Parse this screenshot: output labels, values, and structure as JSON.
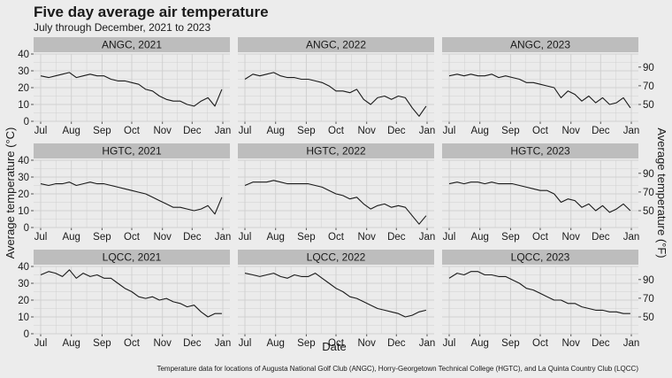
{
  "chart_data": {
    "type": "line",
    "title": "Five day average air temperature",
    "subtitle": "July through December, 2021 to 2023",
    "xlabel": "Date",
    "ylabel_left": "Average temperature (°C)",
    "ylabel_right": "Average temperature (°F)",
    "caption": "Temperature data for locations of Augusta National Golf Club (ANGC), Horry-Georgetown Technical College (HGTC), and La Quinta Country Club (LQCC)",
    "x_ticks": [
      "Jul",
      "Aug",
      "Sep",
      "Oct",
      "Nov",
      "Dec",
      "Jan"
    ],
    "panels": [
      {
        "label": "ANGC, 2021",
        "row": 0,
        "col": 0,
        "ylim": [
          0,
          40
        ],
        "y_ticks": [
          0,
          10,
          20,
          30,
          40
        ],
        "x": [
          0,
          8,
          15,
          22,
          29,
          36,
          43,
          50,
          57,
          64,
          71,
          78,
          85,
          92,
          99,
          106,
          113,
          120,
          127,
          134,
          141,
          148,
          155,
          162,
          169,
          176,
          183
        ],
        "y": [
          27,
          26,
          27,
          28,
          29,
          26,
          27,
          28,
          27,
          27,
          25,
          24,
          24,
          23,
          22,
          19,
          18,
          15,
          13,
          12,
          12,
          10,
          9,
          12,
          14,
          9,
          19
        ]
      },
      {
        "label": "ANGC, 2022",
        "row": 0,
        "col": 1,
        "ylim": [
          0,
          40
        ],
        "y_ticks": [
          0,
          10,
          20,
          30,
          40
        ],
        "x": [
          0,
          8,
          15,
          22,
          29,
          36,
          43,
          50,
          57,
          64,
          71,
          78,
          85,
          92,
          99,
          106,
          113,
          120,
          127,
          134,
          141,
          148,
          155,
          162,
          169,
          176,
          183
        ],
        "y": [
          25,
          28,
          27,
          28,
          29,
          27,
          26,
          26,
          25,
          25,
          24,
          23,
          21,
          18,
          18,
          17,
          19,
          13,
          10,
          14,
          15,
          13,
          15,
          14,
          8,
          3,
          9
        ]
      },
      {
        "label": "ANGC, 2023",
        "row": 0,
        "col": 2,
        "ylim": [
          0,
          40
        ],
        "y_ticks": [
          0,
          10,
          20,
          30,
          40
        ],
        "right_ticks": [
          50,
          70,
          90
        ],
        "x": [
          0,
          8,
          15,
          22,
          29,
          36,
          43,
          50,
          57,
          64,
          71,
          78,
          85,
          92,
          99,
          106,
          113,
          120,
          127,
          134,
          141,
          148,
          155,
          162,
          169,
          176,
          183
        ],
        "y": [
          27,
          28,
          27,
          28,
          27,
          27,
          28,
          26,
          27,
          26,
          25,
          23,
          23,
          22,
          21,
          20,
          14,
          18,
          16,
          12,
          15,
          11,
          14,
          10,
          11,
          14,
          8
        ]
      },
      {
        "label": "HGTC, 2021",
        "row": 1,
        "col": 0,
        "ylim": [
          0,
          40
        ],
        "y_ticks": [
          0,
          10,
          20,
          30,
          40
        ],
        "x": [
          0,
          8,
          15,
          22,
          29,
          36,
          43,
          50,
          57,
          64,
          71,
          78,
          85,
          92,
          99,
          106,
          113,
          120,
          127,
          134,
          141,
          148,
          155,
          162,
          169,
          176,
          183
        ],
        "y": [
          26,
          25,
          26,
          26,
          27,
          25,
          26,
          27,
          26,
          26,
          25,
          24,
          23,
          22,
          21,
          20,
          18,
          16,
          14,
          12,
          12,
          11,
          10,
          11,
          13,
          8,
          18
        ]
      },
      {
        "label": "HGTC, 2022",
        "row": 1,
        "col": 1,
        "ylim": [
          0,
          40
        ],
        "y_ticks": [
          0,
          10,
          20,
          30,
          40
        ],
        "x": [
          0,
          8,
          15,
          22,
          29,
          36,
          43,
          50,
          57,
          64,
          71,
          78,
          85,
          92,
          99,
          106,
          113,
          120,
          127,
          134,
          141,
          148,
          155,
          162,
          169,
          176,
          183
        ],
        "y": [
          25,
          27,
          27,
          27,
          28,
          27,
          26,
          26,
          26,
          26,
          25,
          24,
          22,
          20,
          19,
          17,
          18,
          14,
          11,
          13,
          14,
          12,
          13,
          12,
          7,
          2,
          7
        ]
      },
      {
        "label": "HGTC, 2023",
        "row": 1,
        "col": 2,
        "ylim": [
          0,
          40
        ],
        "y_ticks": [
          0,
          10,
          20,
          30,
          40
        ],
        "right_ticks": [
          50,
          70,
          90
        ],
        "x": [
          0,
          8,
          15,
          22,
          29,
          36,
          43,
          50,
          57,
          64,
          71,
          78,
          85,
          92,
          99,
          106,
          113,
          120,
          127,
          134,
          141,
          148,
          155,
          162,
          169,
          176,
          183
        ],
        "y": [
          26,
          27,
          26,
          27,
          27,
          26,
          27,
          26,
          26,
          26,
          25,
          24,
          23,
          22,
          22,
          20,
          15,
          17,
          16,
          12,
          14,
          10,
          13,
          9,
          11,
          14,
          10
        ]
      },
      {
        "label": "LQCC, 2021",
        "row": 2,
        "col": 0,
        "ylim": [
          0,
          40
        ],
        "y_ticks": [
          0,
          10,
          20,
          30,
          40
        ],
        "x": [
          0,
          8,
          15,
          22,
          29,
          36,
          43,
          50,
          57,
          64,
          71,
          78,
          85,
          92,
          99,
          106,
          113,
          120,
          127,
          134,
          141,
          148,
          155,
          162,
          169,
          176,
          183
        ],
        "y": [
          35,
          37,
          36,
          34,
          38,
          33,
          36,
          34,
          35,
          33,
          33,
          30,
          27,
          25,
          22,
          21,
          22,
          20,
          21,
          19,
          18,
          16,
          17,
          13,
          10,
          12,
          12
        ]
      },
      {
        "label": "LQCC, 2022",
        "row": 2,
        "col": 1,
        "ylim": [
          0,
          40
        ],
        "y_ticks": [
          0,
          10,
          20,
          30,
          40
        ],
        "x": [
          0,
          8,
          15,
          22,
          29,
          36,
          43,
          50,
          57,
          64,
          71,
          78,
          85,
          92,
          99,
          106,
          113,
          120,
          127,
          134,
          141,
          148,
          155,
          162,
          169,
          176,
          183
        ],
        "y": [
          36,
          35,
          34,
          35,
          36,
          34,
          33,
          35,
          34,
          34,
          36,
          33,
          30,
          27,
          25,
          22,
          21,
          19,
          17,
          15,
          14,
          13,
          12,
          10,
          11,
          13,
          14
        ]
      },
      {
        "label": "LQCC, 2023",
        "row": 2,
        "col": 2,
        "ylim": [
          0,
          40
        ],
        "y_ticks": [
          0,
          10,
          20,
          30,
          40
        ],
        "right_ticks": [
          50,
          70,
          90
        ],
        "x": [
          0,
          8,
          15,
          22,
          29,
          36,
          43,
          50,
          57,
          64,
          71,
          78,
          85,
          92,
          99,
          106,
          113,
          120,
          127,
          134,
          141,
          148,
          155,
          162,
          169,
          176,
          183
        ],
        "y": [
          33,
          36,
          35,
          37,
          37,
          35,
          35,
          34,
          34,
          32,
          30,
          27,
          26,
          24,
          22,
          20,
          20,
          18,
          18,
          16,
          15,
          14,
          14,
          13,
          13,
          12,
          12
        ]
      }
    ],
    "colors": {
      "background": "#ececec",
      "panel": "#ebebeb",
      "strip": "#bdbdbd",
      "grid": "#d0d0d0",
      "line": "#1a1a1a"
    }
  }
}
